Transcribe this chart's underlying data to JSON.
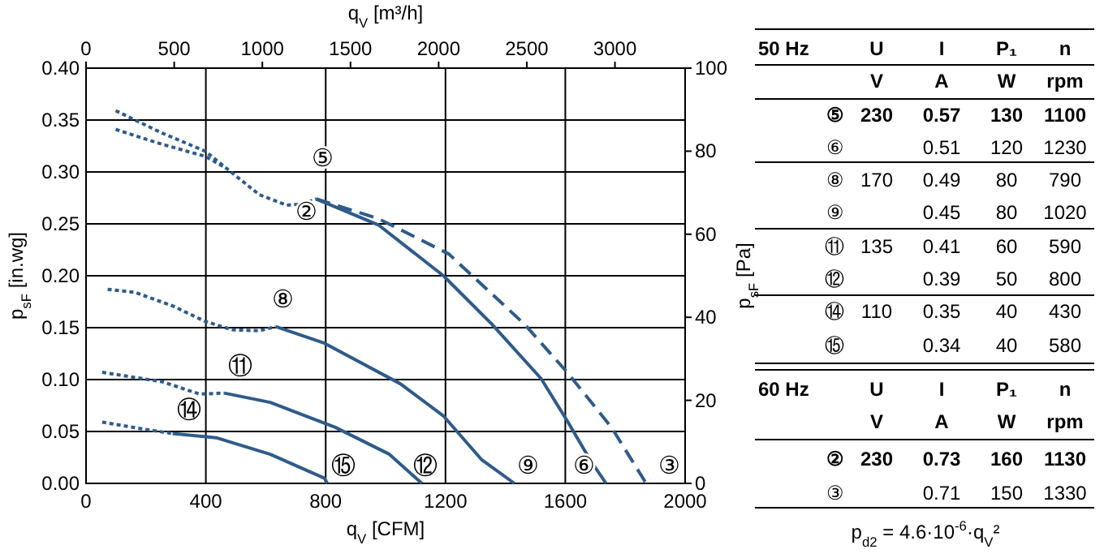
{
  "chart_data": [
    {
      "type": "line",
      "xlabel": "q$_{V}$ [CFM]",
      "x2label": "q$_{V}$ [m³/h]",
      "ylabel": "p$_{sF}$ [in.wg]",
      "y2label": "p$_{sF}$ [Pa]",
      "xlim": [
        0,
        2000
      ],
      "xticks": [
        0,
        400,
        800,
        1200,
        1600,
        2000
      ],
      "x2lim": [
        0,
        3398
      ],
      "x2ticks": [
        0,
        500,
        1000,
        1500,
        2000,
        2500,
        3000
      ],
      "ylim": [
        0,
        0.4
      ],
      "yticks": [
        {
          "value": 0,
          "label": "0.00"
        },
        {
          "value": 0.05,
          "label": "0.05"
        },
        {
          "value": 0.1,
          "label": "0.10"
        },
        {
          "value": 0.15,
          "label": "0.15"
        },
        {
          "value": 0.2,
          "label": "0.20"
        },
        {
          "value": 0.25,
          "label": "0.25"
        },
        {
          "value": 0.3,
          "label": "0.30"
        },
        {
          "value": 0.35,
          "label": "0.35"
        },
        {
          "value": 0.4,
          "label": "0.40"
        }
      ],
      "y2lim": [
        0,
        100
      ],
      "y2ticks": [
        0,
        20,
        40,
        60,
        80,
        100
      ],
      "grid": true,
      "series": [
        {
          "color": "#2f5b8a",
          "line_style": "dotted",
          "x": [
            99,
            250,
            398,
            488,
            579,
            669,
            723,
            768
          ],
          "values": [
            0.359,
            0.338,
            0.32,
            0.299,
            0.278,
            0.268,
            0.269,
            0.274
          ]
        },
        {
          "color": "#2f5b8a",
          "line_style": "solid",
          "x": [
            768,
            976,
            1193,
            1356,
            1519,
            1609,
            1682,
            1736
          ],
          "values": [
            0.274,
            0.249,
            0.2,
            0.153,
            0.101,
            0.059,
            0.023,
            0
          ]
        },
        {
          "color": "#2f5b8a",
          "line_style": "dotted",
          "x": [
            99,
            250,
            398,
            460
          ],
          "values": [
            0.341,
            0.327,
            0.315,
            0.305
          ]
        },
        {
          "color": "#2f5b8a",
          "line_style": "dashed",
          "x": [
            768,
            976,
            1211,
            1465,
            1609,
            1754,
            1870
          ],
          "values": [
            0.274,
            0.255,
            0.221,
            0.153,
            0.106,
            0.054,
            0
          ]
        },
        {
          "color": "#2f5b8a",
          "line_style": "dotted",
          "x": [
            72,
            163,
            289,
            398,
            488,
            579,
            633
          ],
          "values": [
            0.187,
            0.184,
            0.171,
            0.156,
            0.148,
            0.147,
            0.151
          ]
        },
        {
          "color": "#2f5b8a",
          "line_style": "solid",
          "x": [
            633,
            796,
            1049,
            1193,
            1320,
            1430
          ],
          "values": [
            0.151,
            0.135,
            0.096,
            0.065,
            0.023,
            0
          ]
        },
        {
          "color": "#2f5b8a",
          "line_style": "dotted",
          "x": [
            54,
            253,
            380,
            461
          ],
          "values": [
            0.107,
            0.098,
            0.086,
            0.087
          ]
        },
        {
          "color": "#2f5b8a",
          "line_style": "solid",
          "x": [
            461,
            615,
            832,
            1013,
            1121
          ],
          "values": [
            0.087,
            0.078,
            0.054,
            0.028,
            0
          ]
        },
        {
          "color": "#2f5b8a",
          "line_style": "dotted",
          "x": [
            54,
            199,
            289
          ],
          "values": [
            0.059,
            0.052,
            0.048
          ]
        },
        {
          "color": "#2f5b8a",
          "line_style": "solid",
          "x": [
            289,
            434,
            615,
            796,
            805
          ],
          "values": [
            0.048,
            0.044,
            0.028,
            0.005,
            0
          ]
        }
      ],
      "annotations": [
        "⑤",
        "②",
        "⑧",
        "⑪",
        "⑭",
        "⑮",
        "⑫",
        "⑨",
        "⑥",
        "③"
      ]
    },
    {
      "type": "other",
      "annotations": [
        "50 Hz",
        "U",
        "I",
        "P₁",
        "n",
        "V",
        "A",
        "W",
        "rpm",
        "⑤",
        "230",
        "0.57",
        "130",
        "1100",
        "⑥",
        "0.51",
        "120",
        "1230",
        "⑧",
        "170",
        "0.49",
        "80",
        "790",
        "⑨",
        "0.45",
        "80",
        "1020",
        "⑪",
        "135",
        "0.41",
        "60",
        "590",
        "⑫",
        "0.39",
        "50",
        "800",
        "⑭",
        "110",
        "0.35",
        "40",
        "430",
        "⑮",
        "0.34",
        "40",
        "580",
        "60 Hz",
        "U",
        "I",
        "P₁",
        "n",
        "V",
        "A",
        "W",
        "rpm",
        "②",
        "230",
        "0.73",
        "160",
        "1130",
        "③",
        "0.71",
        "150",
        "1330",
        "p$_{d2}$ = 4.6·10$^{-6}$·q$_{V}$²"
      ]
    }
  ]
}
